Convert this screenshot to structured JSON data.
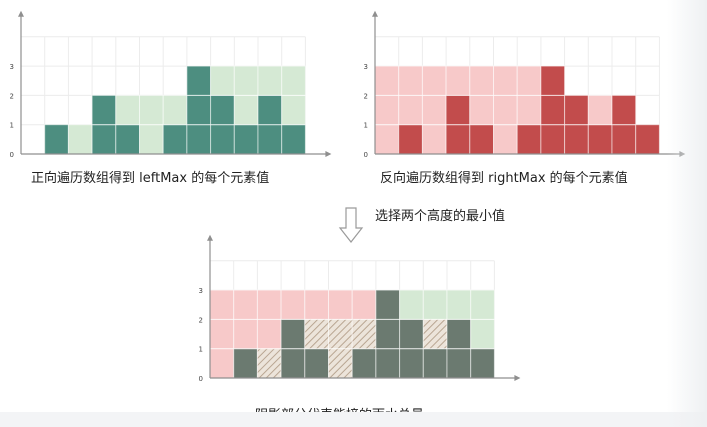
{
  "colors": {
    "left_bar": "#4d8e80",
    "left_fill": "#d5e9d4",
    "right_bar": "#c24c4c",
    "right_fill": "#f7c9c9",
    "wall": "#6b7a70",
    "water_hatch": "#c9b8a4",
    "grid": "#ececec",
    "axis": "#8f8f8f"
  },
  "heights": [
    0,
    1,
    0,
    2,
    1,
    0,
    1,
    3,
    2,
    1,
    2,
    1
  ],
  "left_max": [
    0,
    1,
    1,
    2,
    2,
    2,
    2,
    3,
    3,
    3,
    3,
    3
  ],
  "right_max": [
    3,
    3,
    3,
    3,
    3,
    3,
    3,
    3,
    2,
    2,
    2,
    1
  ],
  "y_ticks": [
    "0",
    "1",
    "2",
    "3"
  ],
  "captions": {
    "left_chart": "正向遍历数组得到 leftMax 的每个元素值",
    "right_chart": "反向遍历数组得到 rightMax 的每个元素值",
    "arrow_note": "选择两个高度的最小值",
    "bottom_chart": "阴影部分代表能接的雨水总量"
  }
}
